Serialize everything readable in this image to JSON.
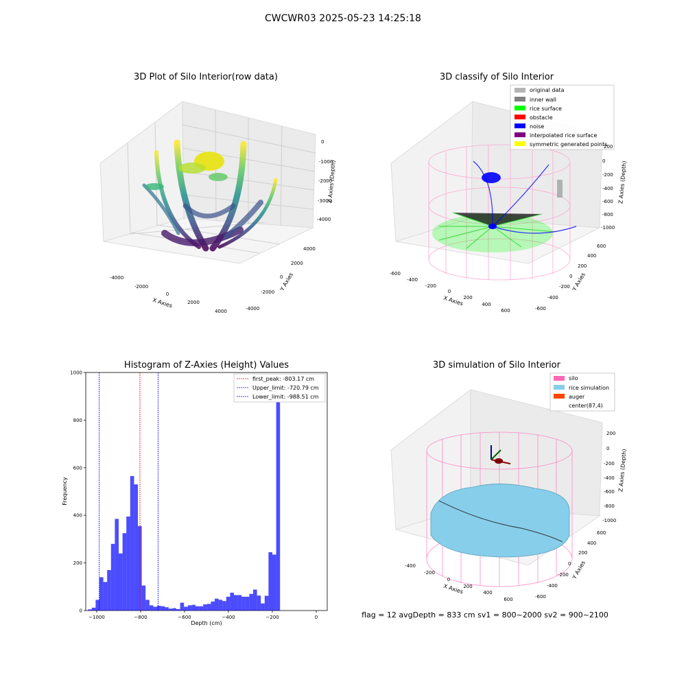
{
  "suptitle": "CWCWR03 2025-05-23 14:25:18",
  "footer": "flag = 12   avgDepth = 833 cm  sv1 = 800~2000  sv2 = 900~2100",
  "panel_raw": {
    "title": "3D Plot of Silo Interior(row data)",
    "xlabel": "X Axies",
    "ylabel": "Y Axies",
    "zlabel": "Z Axies (Depth)",
    "x_ticks": [
      "-4000",
      "-2000",
      "0",
      "2000",
      "4000"
    ],
    "y_ticks": [
      "-4000",
      "-2000",
      "0",
      "2000",
      "4000"
    ],
    "z_ticks": [
      "0",
      "-1000",
      "-2000",
      "-3000",
      "-4000"
    ]
  },
  "panel_classify": {
    "title": "3D classify of Silo Interior",
    "xlabel": "X Axies",
    "ylabel": "Y Axies",
    "zlabel": "Z Axies (Depth)",
    "x_ticks": [
      "-600",
      "-400",
      "-200",
      "0",
      "200",
      "400",
      "600"
    ],
    "y_ticks": [
      "-600",
      "-400",
      "-200",
      "0",
      "200",
      "400",
      "600"
    ],
    "z_ticks": [
      "200",
      "0",
      "-200",
      "-400",
      "-600",
      "-800",
      "-1000"
    ],
    "legend": [
      {
        "label": "original data",
        "color": "#b4b4b4"
      },
      {
        "label": "inner wall",
        "color": "#808080"
      },
      {
        "label": "rice surface",
        "color": "#00ff00"
      },
      {
        "label": "obstacle",
        "color": "#ff0000"
      },
      {
        "label": "noise",
        "color": "#0000ff"
      },
      {
        "label": "interpolated rice surface",
        "color": "#800080"
      },
      {
        "label": "symmetric generated points",
        "color": "#ffff00"
      }
    ]
  },
  "panel_sim": {
    "title": "3D simulation of Silo Interior",
    "xlabel": "X Axies",
    "ylabel": "Y Axies",
    "zlabel": "Z Axies (Depth)",
    "x_ticks": [
      "-400",
      "-200",
      "0",
      "200",
      "400",
      "600"
    ],
    "y_ticks": [
      "-600",
      "-400",
      "-200",
      "0",
      "200",
      "400",
      "600"
    ],
    "z_ticks": [
      "200",
      "0",
      "-200",
      "-400",
      "-600",
      "-800",
      "-1000"
    ],
    "legend": [
      {
        "label": "silo",
        "color": "#ff69b4"
      },
      {
        "label": "rice simulation",
        "color": "#87ceeb"
      },
      {
        "label": "auger",
        "color": "#ff4500"
      },
      {
        "label": "center(87,4)",
        "color": "#ffffff"
      }
    ]
  },
  "chart_data": {
    "type": "bar",
    "title": "Histogram of Z-Axies (Height) Values",
    "xlabel": "Depth (cm)",
    "ylabel": "Frequency",
    "xlim": [
      -1050,
      50
    ],
    "ylim": [
      0,
      1000
    ],
    "x_ticks": [
      -1000,
      -800,
      -600,
      -400,
      -200,
      0
    ],
    "y_ticks": [
      0,
      200,
      400,
      600,
      800,
      1000
    ],
    "bar_color": "#0000ff",
    "bin_width": 17.5,
    "bin_start": -1040,
    "values": [
      5,
      12,
      45,
      140,
      120,
      170,
      280,
      385,
      240,
      325,
      395,
      565,
      530,
      355,
      105,
      45,
      22,
      16,
      20,
      18,
      14,
      8,
      10,
      6,
      33,
      16,
      22,
      24,
      18,
      18,
      26,
      28,
      38,
      50,
      45,
      40,
      58,
      75,
      65,
      65,
      58,
      58,
      70,
      88,
      63,
      30,
      62,
      245,
      235,
      960
    ],
    "vlines": [
      {
        "label": "first_peak: -803.17 cm",
        "x": -803.17,
        "color": "#ff0000"
      },
      {
        "label": "Upper_limit: -720.79 cm",
        "x": -720.79,
        "color": "#0000ff"
      },
      {
        "label": "Lower_limit: -988.51 cm",
        "x": -988.51,
        "color": "#0000ff"
      }
    ]
  }
}
